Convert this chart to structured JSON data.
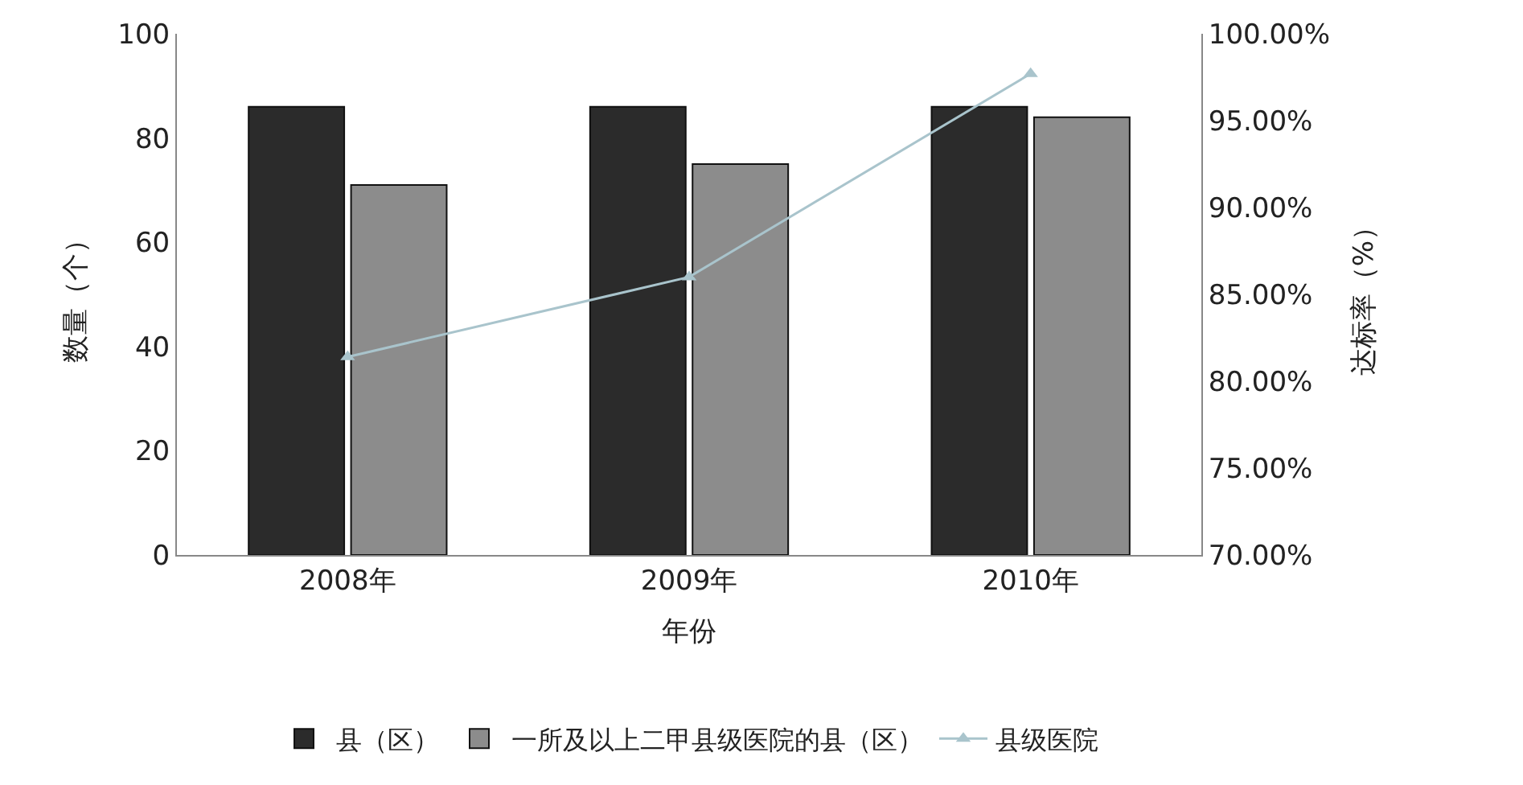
{
  "chart_data": {
    "type": "bar",
    "xlabel": "年份",
    "ylabel": "数量（个）",
    "y2label": "达标率（%）",
    "categories": [
      "2008年",
      "2009年",
      "2010年"
    ],
    "series": [
      {
        "name": "县（区）",
        "color": "#2b2b2b",
        "values": [
          86,
          86,
          86
        ]
      },
      {
        "name": "一所及以上二甲县级医院的县（区）",
        "color": "#8c8c8c",
        "values": [
          71,
          75,
          84
        ]
      },
      {
        "name": "县级医院",
        "type": "line",
        "axis": "y2",
        "color": "#a9c4cc",
        "values": [
          81.4,
          86.0,
          97.7
        ]
      }
    ],
    "ylim": [
      0,
      100
    ],
    "yticks": [
      0,
      20,
      40,
      60,
      80,
      100
    ],
    "y2lim": [
      70,
      100
    ],
    "y2ticks": [
      {
        "value": 70,
        "label": "70.00%"
      },
      {
        "value": 75,
        "label": "75.00%"
      },
      {
        "value": 80,
        "label": "80.00%"
      },
      {
        "value": 85,
        "label": "85.00%"
      },
      {
        "value": 90,
        "label": "90.00%"
      },
      {
        "value": 95,
        "label": "95.00%"
      },
      {
        "value": 100,
        "label": "100.00%"
      }
    ],
    "legend": "bottom",
    "marker": "triangle",
    "line_style": "solid"
  }
}
